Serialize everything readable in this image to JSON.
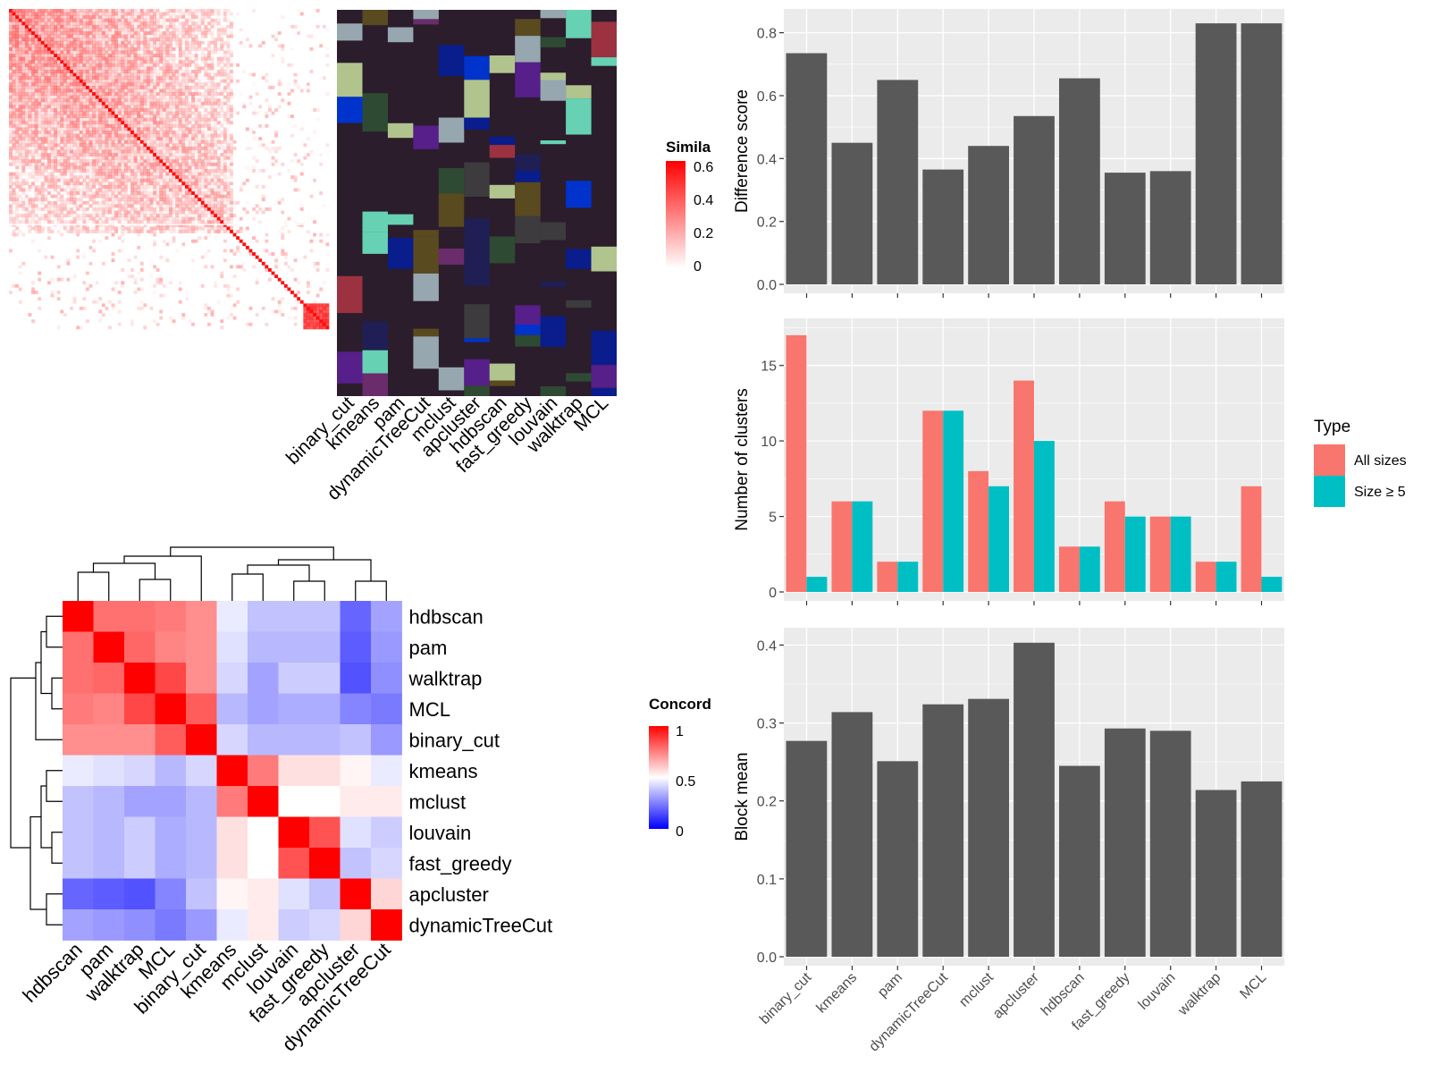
{
  "colors": {
    "panel_bg": "#ebebeb",
    "grid": "#ffffff",
    "bar": "#595959",
    "all_sizes": "#f8766d",
    "size_ge_5": "#00bfc4",
    "heat_high": "#ff0000",
    "heat_mid": "#ffffff",
    "heat_low": "#0000ff",
    "cluster_bg": "#2b1d2b"
  },
  "similarity_panel": {
    "legend_title": "Simila",
    "legend_ticks": [
      "0.6",
      "0.4",
      "0.2",
      "0"
    ],
    "method_labels": [
      "binary_cut",
      "kmeans",
      "pam",
      "dynamicTreeCut",
      "mclust",
      "apcluster",
      "hdbscan",
      "fast_greedy",
      "louvain",
      "walktrap",
      "MCL"
    ],
    "member_colors": [
      "#3d3b3d",
      "#b1c48e",
      "#5a4a1f",
      "#0033cc",
      "#97a7b0",
      "#571f8a",
      "#1f1f55",
      "#9c3240",
      "#2e4a33",
      "#67d1b3",
      "#0a1d8c",
      "#6a2c6a"
    ]
  },
  "concordance_panel": {
    "legend_title": "Concord",
    "legend_ticks": [
      "1",
      "0.5",
      "0"
    ],
    "methods": [
      "hdbscan",
      "pam",
      "walktrap",
      "MCL",
      "binary_cut",
      "kmeans",
      "mclust",
      "louvain",
      "fast_greedy",
      "apcluster",
      "dynamicTreeCut"
    ]
  },
  "chart_data": [
    {
      "type": "heatmap",
      "title": "",
      "legend_title": "Concord",
      "rows": [
        "hdbscan",
        "pam",
        "walktrap",
        "MCL",
        "binary_cut",
        "kmeans",
        "mclust",
        "louvain",
        "fast_greedy",
        "apcluster",
        "dynamicTreeCut"
      ],
      "columns": [
        "hdbscan",
        "pam",
        "walktrap",
        "MCL",
        "binary_cut",
        "kmeans",
        "mclust",
        "louvain",
        "fast_greedy",
        "apcluster",
        "dynamicTreeCut"
      ],
      "values": [
        [
          1.0,
          0.78,
          0.78,
          0.76,
          0.72,
          0.46,
          0.38,
          0.38,
          0.38,
          0.2,
          0.32
        ],
        [
          0.78,
          1.0,
          0.8,
          0.74,
          0.72,
          0.44,
          0.36,
          0.36,
          0.36,
          0.18,
          0.3
        ],
        [
          0.78,
          0.8,
          1.0,
          0.86,
          0.72,
          0.42,
          0.32,
          0.4,
          0.4,
          0.16,
          0.28
        ],
        [
          0.76,
          0.74,
          0.86,
          1.0,
          0.82,
          0.36,
          0.32,
          0.34,
          0.34,
          0.26,
          0.24
        ],
        [
          0.72,
          0.72,
          0.72,
          0.82,
          1.0,
          0.42,
          0.36,
          0.36,
          0.36,
          0.38,
          0.3
        ],
        [
          0.46,
          0.44,
          0.42,
          0.36,
          0.42,
          1.0,
          0.76,
          0.56,
          0.56,
          0.52,
          0.46
        ],
        [
          0.38,
          0.36,
          0.32,
          0.32,
          0.36,
          0.76,
          1.0,
          0.5,
          0.5,
          0.54,
          0.54
        ],
        [
          0.38,
          0.36,
          0.4,
          0.34,
          0.36,
          0.56,
          0.5,
          1.0,
          0.84,
          0.44,
          0.4
        ],
        [
          0.38,
          0.36,
          0.4,
          0.34,
          0.36,
          0.56,
          0.5,
          0.84,
          1.0,
          0.38,
          0.42
        ],
        [
          0.2,
          0.18,
          0.16,
          0.26,
          0.38,
          0.52,
          0.54,
          0.44,
          0.38,
          1.0,
          0.58
        ],
        [
          0.32,
          0.3,
          0.28,
          0.24,
          0.3,
          0.46,
          0.54,
          0.4,
          0.42,
          0.58,
          1.0
        ]
      ],
      "range": [
        0,
        1
      ]
    },
    {
      "type": "bar",
      "title": "",
      "categories": [
        "binary_cut",
        "kmeans",
        "pam",
        "dynamicTreeCut",
        "mclust",
        "apcluster",
        "hdbscan",
        "fast_greedy",
        "louvain",
        "walktrap",
        "MCL"
      ],
      "values": [
        0.735,
        0.45,
        0.65,
        0.365,
        0.44,
        0.535,
        0.655,
        0.355,
        0.36,
        0.83,
        0.83
      ],
      "xlabel": "",
      "ylabel": "Difference score",
      "ylim": [
        0,
        0.87
      ],
      "yticks": [
        "0.0",
        "0.2",
        "0.4",
        "0.6",
        "0.8"
      ],
      "grid": true
    },
    {
      "type": "bar",
      "title": "",
      "categories": [
        "binary_cut",
        "kmeans",
        "pam",
        "dynamicTreeCut",
        "mclust",
        "apcluster",
        "hdbscan",
        "fast_greedy",
        "louvain",
        "walktrap",
        "MCL"
      ],
      "series": [
        {
          "name": "All sizes",
          "values": [
            17,
            6,
            2,
            12,
            8,
            14,
            3,
            6,
            5,
            2,
            7
          ]
        },
        {
          "name": "Size ≥ 5",
          "values": [
            1,
            6,
            2,
            12,
            7,
            10,
            3,
            5,
            5,
            2,
            1
          ]
        }
      ],
      "legend_title": "Type",
      "legend_position": "right",
      "xlabel": "",
      "ylabel": "Number of clusters",
      "ylim": [
        0,
        18
      ],
      "yticks": [
        "0",
        "5",
        "10",
        "15"
      ],
      "grid": true
    },
    {
      "type": "bar",
      "title": "",
      "categories": [
        "binary_cut",
        "kmeans",
        "pam",
        "dynamicTreeCut",
        "mclust",
        "apcluster",
        "hdbscan",
        "fast_greedy",
        "louvain",
        "walktrap",
        "MCL"
      ],
      "values": [
        0.277,
        0.314,
        0.251,
        0.324,
        0.331,
        0.403,
        0.245,
        0.293,
        0.29,
        0.214,
        0.225
      ],
      "xlabel": "",
      "ylabel": "Block mean",
      "ylim": [
        0,
        0.42
      ],
      "yticks": [
        "0.0",
        "0.1",
        "0.2",
        "0.3",
        "0.4"
      ],
      "grid": true
    }
  ]
}
